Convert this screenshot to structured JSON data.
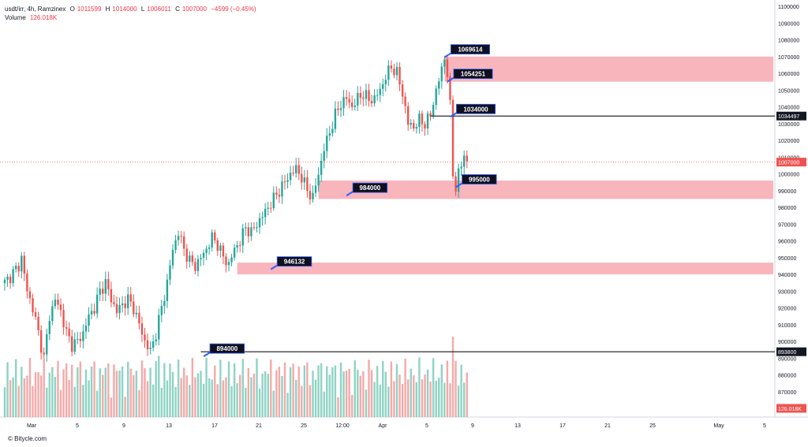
{
  "header": {
    "symbol": "usdt/irr, 4h, Ramzinex",
    "o_label": "O",
    "o": "1011599",
    "h_label": "H",
    "h": "1014000",
    "l_label": "L",
    "l": "1006011",
    "c_label": "C",
    "c": "1007000",
    "change": "−4599 (−0.45%)",
    "volume_label": "Volume",
    "volume": "126.018K"
  },
  "footer": {
    "brand": "© Bitycle.com"
  },
  "colors": {
    "up": "#26a69a",
    "down": "#ef5350",
    "up_vol": "#8fd3c3",
    "down_vol": "#f5a9a9",
    "zone": "#f7a8b0",
    "label_bg": "#0f0f1e",
    "label_edge": "#2962ff"
  },
  "chart_data": {
    "type": "candlestick",
    "symbol": "usdt/irr",
    "timeframe": "4h",
    "ylim": [
      860000,
      1100000
    ],
    "y_ticks": [
      870000,
      880000,
      890000,
      900000,
      910000,
      920000,
      930000,
      940000,
      950000,
      960000,
      970000,
      980000,
      990000,
      1000000,
      1010000,
      1020000,
      1030000,
      1040000,
      1050000,
      1060000,
      1070000,
      1080000,
      1090000,
      1100000
    ],
    "x_ticks": [
      "Mar",
      "5",
      "9",
      "13",
      "17",
      "21",
      "25",
      "12:00",
      "Apr",
      "5",
      "9",
      "13",
      "17",
      "21",
      "25",
      "May",
      "5"
    ],
    "price_path": [
      [
        0,
        935000
      ],
      [
        5,
        945000
      ],
      [
        6,
        950000
      ],
      [
        8,
        930000
      ],
      [
        10,
        920000
      ],
      [
        12,
        905000
      ],
      [
        14,
        890000
      ],
      [
        16,
        915000
      ],
      [
        18,
        925000
      ],
      [
        20,
        918000
      ],
      [
        22,
        905000
      ],
      [
        24,
        898000
      ],
      [
        26,
        900000
      ],
      [
        28,
        905000
      ],
      [
        30,
        915000
      ],
      [
        32,
        920000
      ],
      [
        34,
        930000
      ],
      [
        36,
        935000
      ],
      [
        38,
        925000
      ],
      [
        40,
        918000
      ],
      [
        42,
        922000
      ],
      [
        44,
        925000
      ],
      [
        46,
        920000
      ],
      [
        48,
        910000
      ],
      [
        50,
        900000
      ],
      [
        52,
        894000
      ],
      [
        54,
        905000
      ],
      [
        56,
        920000
      ],
      [
        58,
        935000
      ],
      [
        60,
        955000
      ],
      [
        62,
        965000
      ],
      [
        64,
        955000
      ],
      [
        66,
        948000
      ],
      [
        68,
        945000
      ],
      [
        70,
        950000
      ],
      [
        72,
        955000
      ],
      [
        74,
        962000
      ],
      [
        76,
        958000
      ],
      [
        78,
        950000
      ],
      [
        80,
        946000
      ],
      [
        82,
        955000
      ],
      [
        84,
        960000
      ],
      [
        86,
        968000
      ],
      [
        88,
        965000
      ],
      [
        90,
        970000
      ],
      [
        92,
        975000
      ],
      [
        94,
        980000
      ],
      [
        96,
        985000
      ],
      [
        98,
        990000
      ],
      [
        100,
        995000
      ],
      [
        102,
        1000000
      ],
      [
        104,
        1003000
      ],
      [
        106,
        998000
      ],
      [
        108,
        990000
      ],
      [
        110,
        986000
      ],
      [
        112,
        1000000
      ],
      [
        114,
        1015000
      ],
      [
        116,
        1025000
      ],
      [
        118,
        1035000
      ],
      [
        120,
        1042000
      ],
      [
        122,
        1045000
      ],
      [
        124,
        1040000
      ],
      [
        126,
        1045000
      ],
      [
        128,
        1048000
      ],
      [
        130,
        1044000
      ],
      [
        132,
        1045000
      ],
      [
        134,
        1050000
      ],
      [
        136,
        1058000
      ],
      [
        138,
        1064000
      ],
      [
        140,
        1060000
      ],
      [
        142,
        1048000
      ],
      [
        144,
        1030000
      ],
      [
        146,
        1028000
      ],
      [
        148,
        1032000
      ],
      [
        150,
        1030000
      ],
      [
        152,
        1035000
      ],
      [
        154,
        1050000
      ],
      [
        156,
        1062000
      ],
      [
        157,
        1069614
      ],
      [
        158,
        1060000
      ],
      [
        159,
        1040000
      ],
      [
        160,
        1000000
      ],
      [
        161,
        992000
      ],
      [
        162,
        1000000
      ],
      [
        163,
        1005000
      ],
      [
        164,
        1011599
      ],
      [
        165,
        1007000
      ]
    ],
    "volume_max": 160000,
    "zones": [
      {
        "start_bar": 157,
        "low": 1055000,
        "high": 1070000
      },
      {
        "start_bar": 112,
        "low": 985000,
        "high": 996000
      },
      {
        "start_bar": 83,
        "low": 940000,
        "high": 947000
      }
    ],
    "horizontal_lines": [
      {
        "start_bar": 152,
        "price": 1034497
      },
      {
        "start_bar": 70,
        "price": 893800
      }
    ],
    "dotted_line": {
      "price": 1007000
    },
    "annotations": [
      {
        "text": "1069614",
        "bar": 157,
        "price": 1069614
      },
      {
        "text": "1054251",
        "bar": 158,
        "price": 1055000
      },
      {
        "text": "1034000",
        "bar": 159,
        "price": 1034000
      },
      {
        "text": "995000",
        "bar": 161,
        "price": 992000
      },
      {
        "text": "984000",
        "bar": 122,
        "price": 987000
      },
      {
        "text": "946132",
        "bar": 95,
        "price": 943000
      },
      {
        "text": "894000",
        "bar": 71,
        "price": 891000
      }
    ],
    "axis_badges": [
      {
        "text": "1034497",
        "price": 1034497,
        "style": "dark"
      },
      {
        "text": "1007000",
        "price": 1007000,
        "style": "red"
      },
      {
        "text": "893800",
        "price": 893800,
        "style": "dark"
      },
      {
        "text": "126.018K",
        "y_from": "volume",
        "style": "red"
      }
    ]
  }
}
